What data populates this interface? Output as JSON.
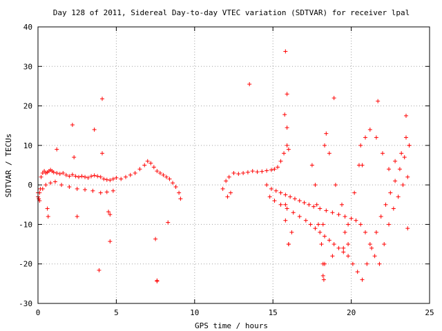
{
  "chart_data": {
    "type": "scatter",
    "title": "Day 128 of 2011, Sidereal Day-to-day VTEC variation (SDTVAR) for receiver lpal",
    "xlabel": "GPS time / hours",
    "ylabel": "SDTVAR / TECUs",
    "xlim": [
      0,
      25
    ],
    "ylim": [
      -30,
      40
    ],
    "xticks": [
      0,
      5,
      10,
      15,
      20,
      25
    ],
    "yticks": [
      -30,
      -20,
      -10,
      0,
      10,
      20,
      30,
      40
    ],
    "xtick_labels": [
      "0",
      "5",
      "10",
      "15",
      "20",
      "25"
    ],
    "ytick_labels": [
      "-30",
      "-20",
      "-10",
      "0",
      "10",
      "20",
      "30",
      "40"
    ],
    "grid": true,
    "legend": "none",
    "marker": "plus",
    "color": "#ff0000",
    "series": [
      {
        "x": [
          0.0,
          0.05,
          0.1,
          0.15,
          0.2,
          0.3,
          0.4,
          0.5,
          0.6,
          0.7,
          0.8,
          0.9,
          1.0,
          1.2,
          1.4,
          1.6,
          1.8,
          2.0,
          2.2,
          2.4,
          2.6,
          2.8,
          3.0,
          3.2,
          3.4,
          3.6,
          3.8,
          4.0,
          4.2,
          4.4,
          4.6,
          4.8,
          5.0,
          5.3,
          5.6,
          5.9,
          6.2,
          6.5,
          6.8,
          7.0,
          7.2,
          7.4,
          7.6,
          7.8,
          8.0,
          8.2,
          8.4,
          8.6,
          8.8,
          9.0,
          9.1,
          0.0,
          0.1,
          0.3,
          0.5,
          0.8,
          1.1,
          1.5,
          2.0,
          2.5,
          3.0,
          3.5,
          4.0,
          4.4,
          4.8,
          0.6,
          0.65,
          1.2,
          2.2,
          2.3,
          2.5,
          3.6,
          3.9,
          4.1,
          4.1,
          4.5,
          4.6,
          4.6,
          7.5,
          7.6,
          7.6,
          8.3,
          11.8,
          12.0,
          12.2,
          12.5,
          12.8,
          13.1,
          13.4,
          13.7,
          14.0,
          14.3,
          14.6,
          14.9,
          15.1,
          15.3,
          15.5,
          15.7,
          15.9,
          16.0,
          12.1,
          12.3,
          13.5,
          15.8,
          15.9,
          15.75,
          15.9,
          16.0,
          14.6,
          14.9,
          15.2,
          15.5,
          15.8,
          16.1,
          16.4,
          16.7,
          17.0,
          17.3,
          17.6,
          18.0,
          18.4,
          18.8,
          19.2,
          19.6,
          20.0,
          20.3,
          20.6,
          20.9,
          21.2,
          21.5,
          21.8,
          22.1,
          22.4,
          22.7,
          23.0,
          23.3,
          23.6,
          14.8,
          15.1,
          15.5,
          15.9,
          16.3,
          16.7,
          17.1,
          17.4,
          17.7,
          18.0,
          18.3,
          18.6,
          18.9,
          19.2,
          19.5,
          19.8,
          20.1,
          20.4,
          20.7,
          21.0,
          21.3,
          21.6,
          21.9,
          22.2,
          22.5,
          22.8,
          23.1,
          23.4,
          23.7,
          17.7,
          17.8,
          17.9,
          18.1,
          18.2,
          18.25,
          18.3,
          18.4,
          18.6,
          19.0,
          19.4,
          19.8,
          20.2,
          20.5,
          20.6,
          20.7,
          20.9,
          21.2,
          21.6,
          22.0,
          22.4,
          22.8,
          23.2,
          23.5,
          23.7,
          18.2,
          18.3,
          18.8,
          19.6,
          19.8,
          19.5,
          18.2,
          21.7,
          23.5,
          23.6,
          15.8,
          15.8,
          16.0,
          16.2,
          17.5,
          18.9
        ],
        "y": [
          -2,
          -3.5,
          -4,
          -1,
          2,
          3,
          3.5,
          3,
          3.2,
          3.5,
          3.8,
          3.5,
          3.2,
          3,
          2.8,
          3,
          2.5,
          2.2,
          2.6,
          2.2,
          2,
          2.2,
          2,
          1.8,
          2.2,
          2.4,
          2.2,
          2,
          1.5,
          1.3,
          1.2,
          1.5,
          1.8,
          1.5,
          2,
          2.5,
          3,
          4,
          5,
          6,
          5.5,
          4.5,
          3.5,
          3,
          2.5,
          2,
          1.5,
          0.5,
          -0.5,
          -2,
          -3.5,
          -3,
          -2,
          -1,
          0,
          0.5,
          0.8,
          0,
          -0.5,
          -1,
          -1.2,
          -1.5,
          -2,
          -1.8,
          -1.5,
          -6,
          -8,
          9,
          15.2,
          7,
          -8,
          14,
          -21.6,
          21.8,
          8,
          -6.8,
          -14.3,
          -7.5,
          -13.7,
          -24.2,
          -24.4,
          -9.5,
          -1,
          1,
          2,
          3,
          2.8,
          3,
          3.2,
          3.5,
          3.3,
          3.4,
          3.6,
          3.8,
          4,
          4.5,
          6,
          8,
          10,
          9,
          -3,
          -2,
          25.5,
          33.8,
          23,
          17.8,
          14.5,
          -15,
          0,
          -1,
          -1.5,
          -2,
          -2.5,
          -3,
          -3.5,
          -4,
          -4.5,
          -5,
          -5.5,
          -6,
          -6.5,
          -7,
          -7.5,
          -8,
          -8.5,
          -9,
          -10,
          -12,
          -15,
          -18,
          -20,
          -15,
          -10,
          -6,
          -3,
          0,
          2,
          -3,
          -4,
          -5,
          -6,
          -7,
          -8,
          -9,
          -10,
          -11,
          -12,
          -13,
          -14,
          -15,
          -16,
          -17,
          -18,
          -20,
          -22,
          -24,
          -20,
          -16,
          -12,
          -8,
          -5,
          -2,
          1,
          4,
          7,
          10,
          0,
          -5,
          -10,
          -15,
          -20,
          -24,
          10,
          13,
          8,
          0,
          -5,
          -10,
          -2,
          5,
          10,
          5,
          12,
          14,
          12,
          8,
          4,
          6,
          8,
          12,
          10,
          -23,
          -20,
          -18,
          -12,
          -15,
          -16,
          -10,
          21.2,
          17.5,
          -11,
          -9,
          -5,
          -15,
          -12,
          5,
          22
        ],
        "note_values_estimated": true
      }
    ]
  }
}
